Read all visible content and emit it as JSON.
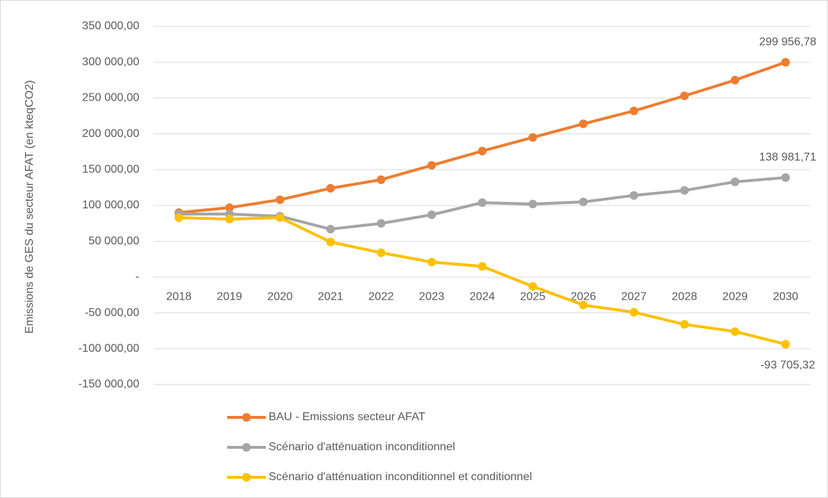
{
  "chart_data": {
    "type": "line",
    "y_label": "Emissions de GES du secteur AFAT (en kteqCO2)",
    "categories": [
      "2018",
      "2019",
      "2020",
      "2021",
      "2022",
      "2023",
      "2024",
      "2025",
      "2026",
      "2027",
      "2028",
      "2029",
      "2030"
    ],
    "series": [
      {
        "name": "BAU - Emissions secteur AFAT",
        "color": "#ED7D31",
        "values": [
          90000,
          97000,
          108000,
          124000,
          136000,
          156000,
          176000,
          195000,
          214000,
          232000,
          253000,
          275000,
          299956.78
        ],
        "value_labels": [
          null,
          null,
          null,
          null,
          null,
          null,
          null,
          null,
          null,
          null,
          null,
          null,
          "299 956,78"
        ]
      },
      {
        "name": "Scénario d'atténuation inconditionnel",
        "color": "#A5A5A5",
        "values": [
          88000,
          88000,
          85000,
          67000,
          75000,
          87000,
          104000,
          102000,
          105000,
          114000,
          121000,
          133000,
          138981.71
        ],
        "value_labels": [
          null,
          null,
          null,
          null,
          null,
          null,
          null,
          null,
          null,
          null,
          null,
          null,
          "138 981,71"
        ]
      },
      {
        "name": "Scénario d'atténuation inconditionnel et conditionnel",
        "color": "#FFC000",
        "values": [
          83000,
          81000,
          83000,
          49000,
          34000,
          21000,
          15000,
          -13000,
          -39000,
          -49000,
          -66000,
          -76000,
          -93705.32
        ],
        "value_labels": [
          null,
          null,
          null,
          null,
          null,
          null,
          null,
          null,
          null,
          null,
          null,
          null,
          "-93 705,32"
        ]
      }
    ],
    "ylim": [
      -150000,
      350000
    ],
    "yticks": [
      {
        "value": -150000,
        "label": "-150 000,00"
      },
      {
        "value": -100000,
        "label": "-100 000,00"
      },
      {
        "value": -50000,
        "label": "-50 000,00"
      },
      {
        "value": 0,
        "label": "-"
      },
      {
        "value": 50000,
        "label": "50 000,00"
      },
      {
        "value": 100000,
        "label": "100 000,00"
      },
      {
        "value": 150000,
        "label": "150 000,00"
      },
      {
        "value": 200000,
        "label": "200 000,00"
      },
      {
        "value": 250000,
        "label": "250 000,00"
      },
      {
        "value": 300000,
        "label": "300 000,00"
      },
      {
        "value": 350000,
        "label": "350 000,00"
      }
    ],
    "grid": true,
    "legend": "bottom"
  }
}
